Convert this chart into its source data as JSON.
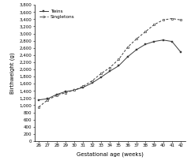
{
  "gestational_age": [
    26,
    27,
    28,
    29,
    30,
    31,
    32,
    33,
    34,
    35,
    36,
    37,
    38,
    39,
    40,
    41,
    42
  ],
  "twins": [
    1150,
    1180,
    1300,
    1380,
    1420,
    1500,
    1620,
    1780,
    1950,
    2100,
    2350,
    2550,
    2700,
    2780,
    2820,
    2780,
    2480
  ],
  "singletons": [
    950,
    1150,
    1270,
    1350,
    1420,
    1530,
    1680,
    1880,
    2050,
    2280,
    2620,
    2850,
    3050,
    3250,
    3380,
    3420,
    3380
  ],
  "ylabel": "Birthweight (g)",
  "xlabel": "Gestational age (weeks)",
  "ylim": [
    0,
    3800
  ],
  "yticks": [
    0,
    200,
    400,
    600,
    800,
    1000,
    1200,
    1400,
    1600,
    1800,
    2000,
    2200,
    2400,
    2600,
    2800,
    3000,
    3200,
    3400,
    3600,
    3800
  ],
  "ytick_labels": [
    "0",
    "200",
    "400",
    "600",
    "800",
    "1,000",
    "1,200",
    "1,400",
    "1,600",
    "1,800",
    "2,000",
    "2,200",
    "2,400",
    "2,600",
    "2,800",
    "3,000",
    "3,200",
    "3,400",
    "3,600",
    "3,800"
  ],
  "legend_twins": "Twins",
  "legend_singletons": "Singletons",
  "line_color": "#3a3a3a",
  "background_color": "#ffffff"
}
